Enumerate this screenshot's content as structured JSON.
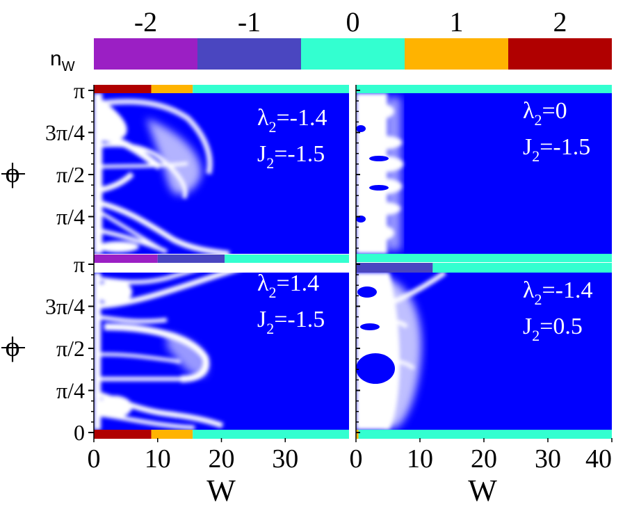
{
  "chart_data": {
    "type": "heatmap",
    "colorbar": {
      "label_main": "n",
      "label_sub": "W",
      "values": [
        "-2",
        "-1",
        "0",
        "1",
        "2"
      ],
      "colors": [
        "#9B1FC4",
        "#4A46C0",
        "#33FFD0",
        "#FFB300",
        "#B00000"
      ]
    },
    "colors": {
      "background": "#0000FF",
      "feature": "#FFFFFF"
    },
    "y_axis": {
      "label": "ϕ",
      "ticks": [
        "0",
        "π/4",
        "π/2",
        "3π/4",
        "π"
      ],
      "range": [
        0,
        3.1416
      ]
    },
    "x_axis": {
      "label": "W",
      "ticks": [
        "0",
        "10",
        "20",
        "30",
        "40"
      ],
      "range": [
        0,
        40
      ]
    },
    "panels": [
      {
        "id": "top-left",
        "lambda_label": "λ",
        "lambda_sub": "2",
        "lambda_value": "=-1.4",
        "j_label": "J",
        "j_sub": "2",
        "j_value": "=-1.5",
        "top_strip": [
          {
            "from": 0,
            "to": 9,
            "n": 2
          },
          {
            "from": 9,
            "to": 15.5,
            "n": 1
          },
          {
            "from": 15.5,
            "to": 40,
            "n": 0
          }
        ],
        "bottom_strip": []
      },
      {
        "id": "top-right",
        "lambda_label": "λ",
        "lambda_sub": "2",
        "lambda_value": "=0",
        "j_label": "J",
        "j_sub": "2",
        "j_value": "=-1.5",
        "top_strip": [
          {
            "from": 0,
            "to": 40,
            "n": 0
          }
        ],
        "bottom_strip": []
      },
      {
        "id": "bottom-left",
        "lambda_label": "λ",
        "lambda_sub": "2",
        "lambda_value": "=1.4",
        "j_label": "J",
        "j_sub": "2",
        "j_value": "=-1.5",
        "top_strip": [
          {
            "from": 0,
            "to": 10,
            "n": -2
          },
          {
            "from": 10,
            "to": 20.5,
            "n": -1
          },
          {
            "from": 20.5,
            "to": 40,
            "n": 0
          }
        ],
        "bottom_strip": [
          {
            "from": 0,
            "to": 9,
            "n": 2
          },
          {
            "from": 9,
            "to": 15.5,
            "n": 1
          },
          {
            "from": 15.5,
            "to": 40,
            "n": 0
          }
        ]
      },
      {
        "id": "bottom-right",
        "lambda_label": "λ",
        "lambda_sub": "2",
        "lambda_value": "=-1.4",
        "j_label": "J",
        "j_sub": "2",
        "j_value": "=0.5",
        "top_strip": [
          {
            "from": 0,
            "to": 12,
            "n": -1
          },
          {
            "from": 12,
            "to": 40,
            "n": 0
          }
        ],
        "bottom_strip": [
          {
            "from": 0,
            "to": 0.4,
            "n": 1
          },
          {
            "from": 0.4,
            "to": 40,
            "n": 0
          }
        ]
      }
    ]
  }
}
